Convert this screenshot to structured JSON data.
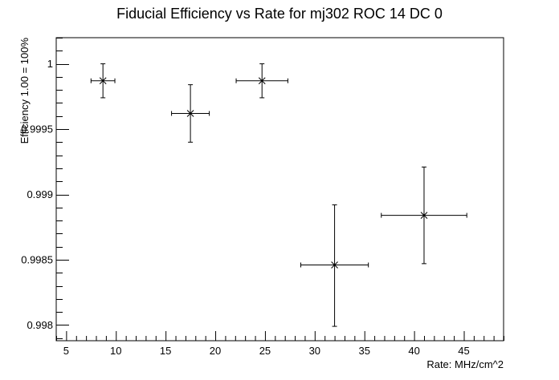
{
  "chart_data": {
    "type": "scatter",
    "title": "Fiducial Efficiency vs Rate for mj302 ROC 14 DC 0",
    "xlabel": "Rate: MHz/cm^2",
    "ylabel": "Efficiency 1.00 = 100%",
    "xlim": [
      4.0,
      49.0
    ],
    "ylim": [
      0.99788,
      1.0002
    ],
    "x_ticks": [
      5,
      10,
      15,
      20,
      25,
      30,
      35,
      40,
      45
    ],
    "x_tick_labels": [
      "5",
      "10",
      "15",
      "20",
      "25",
      "30",
      "35",
      "40",
      "45"
    ],
    "y_ticks": [
      0.998,
      0.9985,
      0.999,
      0.9995,
      1.0
    ],
    "y_tick_labels": [
      "0.998",
      "0.9985",
      "0.999",
      "0.9995",
      "1"
    ],
    "grid": false,
    "legend": "none",
    "series": [
      {
        "marker": "x",
        "points": [
          {
            "x": 8.7,
            "y": 0.99987,
            "xerr": 1.2,
            "ydown": 0.00013,
            "yup": 0.00013
          },
          {
            "x": 17.5,
            "y": 0.99962,
            "xerr": 1.9,
            "ydown": 0.00022,
            "yup": 0.00022
          },
          {
            "x": 24.7,
            "y": 0.99987,
            "xerr": 2.6,
            "ydown": 0.00013,
            "yup": 0.00013
          },
          {
            "x": 32.0,
            "y": 0.99846,
            "xerr": 3.4,
            "ydown": 0.00047,
            "yup": 0.00046
          },
          {
            "x": 41.0,
            "y": 0.99884,
            "xerr": 4.3,
            "ydown": 0.00037,
            "yup": 0.00037
          }
        ]
      }
    ]
  }
}
